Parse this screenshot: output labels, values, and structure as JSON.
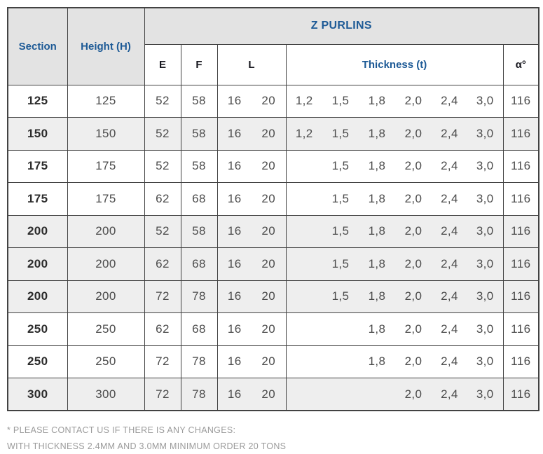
{
  "header": {
    "section": "Section",
    "height": "Height (H)",
    "group_title": "Z PURLINS",
    "e": "E",
    "f": "F",
    "l": "L",
    "thickness": "Thickness (t)",
    "alpha": "α°"
  },
  "colors": {
    "accent_blue": "#1d5a96",
    "header_bg": "#e3e3e3",
    "shaded_row_bg": "#eeeeee",
    "border": "#424242"
  },
  "table": {
    "rows": [
      {
        "section": "125",
        "height": "125",
        "e": "52",
        "f": "58",
        "l": [
          "16",
          "20"
        ],
        "t": [
          "1,2",
          "1,5",
          "1,8",
          "2,0",
          "2,4",
          "3,0"
        ],
        "alpha": "116",
        "shaded": false
      },
      {
        "section": "150",
        "height": "150",
        "e": "52",
        "f": "58",
        "l": [
          "16",
          "20"
        ],
        "t": [
          "1,2",
          "1,5",
          "1,8",
          "2,0",
          "2,4",
          "3,0"
        ],
        "alpha": "116",
        "shaded": true
      },
      {
        "section": "175",
        "height": "175",
        "e": "52",
        "f": "58",
        "l": [
          "16",
          "20"
        ],
        "t": [
          "",
          "1,5",
          "1,8",
          "2,0",
          "2,4",
          "3,0"
        ],
        "alpha": "116",
        "shaded": false
      },
      {
        "section": "175",
        "height": "175",
        "e": "62",
        "f": "68",
        "l": [
          "16",
          "20"
        ],
        "t": [
          "",
          "1,5",
          "1,8",
          "2,0",
          "2,4",
          "3,0"
        ],
        "alpha": "116",
        "shaded": false
      },
      {
        "section": "200",
        "height": "200",
        "e": "52",
        "f": "58",
        "l": [
          "16",
          "20"
        ],
        "t": [
          "",
          "1,5",
          "1,8",
          "2,0",
          "2,4",
          "3,0"
        ],
        "alpha": "116",
        "shaded": true
      },
      {
        "section": "200",
        "height": "200",
        "e": "62",
        "f": "68",
        "l": [
          "16",
          "20"
        ],
        "t": [
          "",
          "1,5",
          "1,8",
          "2,0",
          "2,4",
          "3,0"
        ],
        "alpha": "116",
        "shaded": true
      },
      {
        "section": "200",
        "height": "200",
        "e": "72",
        "f": "78",
        "l": [
          "16",
          "20"
        ],
        "t": [
          "",
          "1,5",
          "1,8",
          "2,0",
          "2,4",
          "3,0"
        ],
        "alpha": "116",
        "shaded": true
      },
      {
        "section": "250",
        "height": "250",
        "e": "62",
        "f": "68",
        "l": [
          "16",
          "20"
        ],
        "t": [
          "",
          "",
          "1,8",
          "2,0",
          "2,4",
          "3,0"
        ],
        "alpha": "116",
        "shaded": false
      },
      {
        "section": "250",
        "height": "250",
        "e": "72",
        "f": "78",
        "l": [
          "16",
          "20"
        ],
        "t": [
          "",
          "",
          "1,8",
          "2,0",
          "2,4",
          "3,0"
        ],
        "alpha": "116",
        "shaded": false
      },
      {
        "section": "300",
        "height": "300",
        "e": "72",
        "f": "78",
        "l": [
          "16",
          "20"
        ],
        "t": [
          "",
          "",
          "",
          "2,0",
          "2,4",
          "3,0"
        ],
        "alpha": "116",
        "shaded": true
      }
    ]
  },
  "footnote": {
    "line1": "* PLEASE CONTACT US IF THERE IS ANY CHANGES:",
    "line2": "WITH THICKNESS 2.4MM AND 3.0MM MINIMUM ORDER 20 TONS"
  }
}
